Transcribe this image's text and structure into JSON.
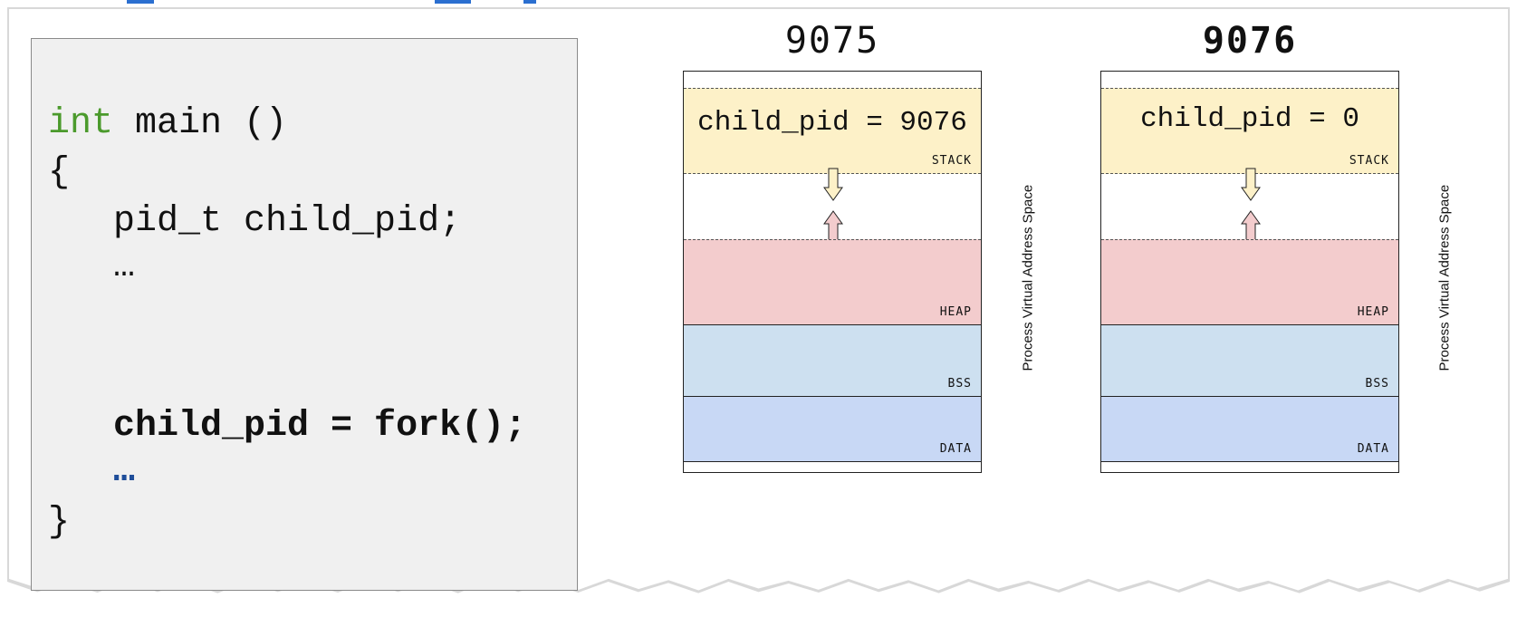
{
  "code": {
    "lines": [
      {
        "keyword": "int",
        "rest": " main ()"
      },
      {
        "text": "{"
      },
      {
        "text": "   pid_t child_pid;"
      },
      {
        "text": "   …"
      },
      {
        "text": "   child_pid = fork();"
      },
      {
        "text": "   …"
      },
      {
        "text": "}"
      }
    ]
  },
  "processes": [
    {
      "pid": "9075",
      "stack_var": "child_pid = 9076",
      "segments": {
        "stack": "STACK",
        "heap": "HEAP",
        "bss": "BSS",
        "data": "DATA"
      },
      "side_label": "Process Virtual Address Space"
    },
    {
      "pid": "9076",
      "stack_var": "child_pid = 0",
      "segments": {
        "stack": "STACK",
        "heap": "HEAP",
        "bss": "BSS",
        "data": "DATA"
      },
      "side_label": "Process Virtual Address Space"
    }
  ],
  "colors": {
    "stack": "#fdf1c8",
    "heap": "#f3cccd",
    "bss": "#cde0f0",
    "data": "#c8d8f5",
    "keyword": "#4b9a2c",
    "code_panel": "#f0f0f0"
  }
}
